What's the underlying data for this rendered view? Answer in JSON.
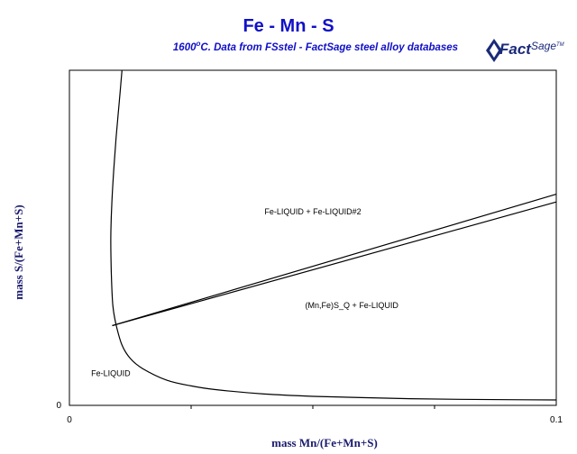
{
  "header": {
    "title": "Fe - Mn - S",
    "subtitle_temp": "1600",
    "subtitle_deg": "o",
    "subtitle_rest": "C.  Data from FSstel - FactSage steel alloy databases",
    "logo_main": "Fact",
    "logo_sage": "Sage",
    "logo_tm": "TM"
  },
  "colors": {
    "title": "#1010c8",
    "axis_label": "#1a1a6e",
    "lines": "#000000",
    "logo": "#1a2a7a"
  },
  "chart_data": {
    "type": "line",
    "title": "Fe - Mn - S",
    "xlabel": "mass Mn/(Fe+Mn+S)",
    "ylabel": "mass S/(Fe+Mn+S)",
    "xlim": [
      0,
      0.1
    ],
    "ylim": [
      0,
      1
    ],
    "x_ticks": [
      "0",
      "0.1"
    ],
    "y_ticks": [
      "0"
    ],
    "grid": false,
    "series": [
      {
        "x": [
          0.0108,
          0.0102,
          0.0096,
          0.0091,
          0.0087,
          0.0085,
          0.0086,
          0.0089,
          0.0096,
          0.0108,
          0.0125,
          0.015,
          0.02,
          0.025,
          0.03,
          0.04,
          0.05,
          0.06,
          0.07,
          0.08,
          0.09,
          0.1
        ],
        "y": [
          1.0,
          0.9,
          0.8,
          0.7,
          0.6,
          0.5,
          0.4,
          0.3,
          0.24,
          0.18,
          0.14,
          0.11,
          0.075,
          0.058,
          0.047,
          0.034,
          0.027,
          0.023,
          0.02,
          0.018,
          0.017,
          0.016
        ]
      },
      {
        "x": [
          0.0088,
          0.1
        ],
        "y": [
          0.238,
          0.63
        ]
      },
      {
        "x": [
          0.0088,
          0.1
        ],
        "y": [
          0.238,
          0.607
        ]
      }
    ],
    "annotations": [
      {
        "text": "Fe-LIQUID + Fe-LIQUID#2",
        "x": 0.05,
        "y": 0.57
      },
      {
        "text": "(Mn,Fe)S_Q + Fe-LIQUID",
        "x": 0.058,
        "y": 0.29
      },
      {
        "text": "Fe-LIQUID",
        "x": 0.0085,
        "y": 0.087
      }
    ]
  }
}
